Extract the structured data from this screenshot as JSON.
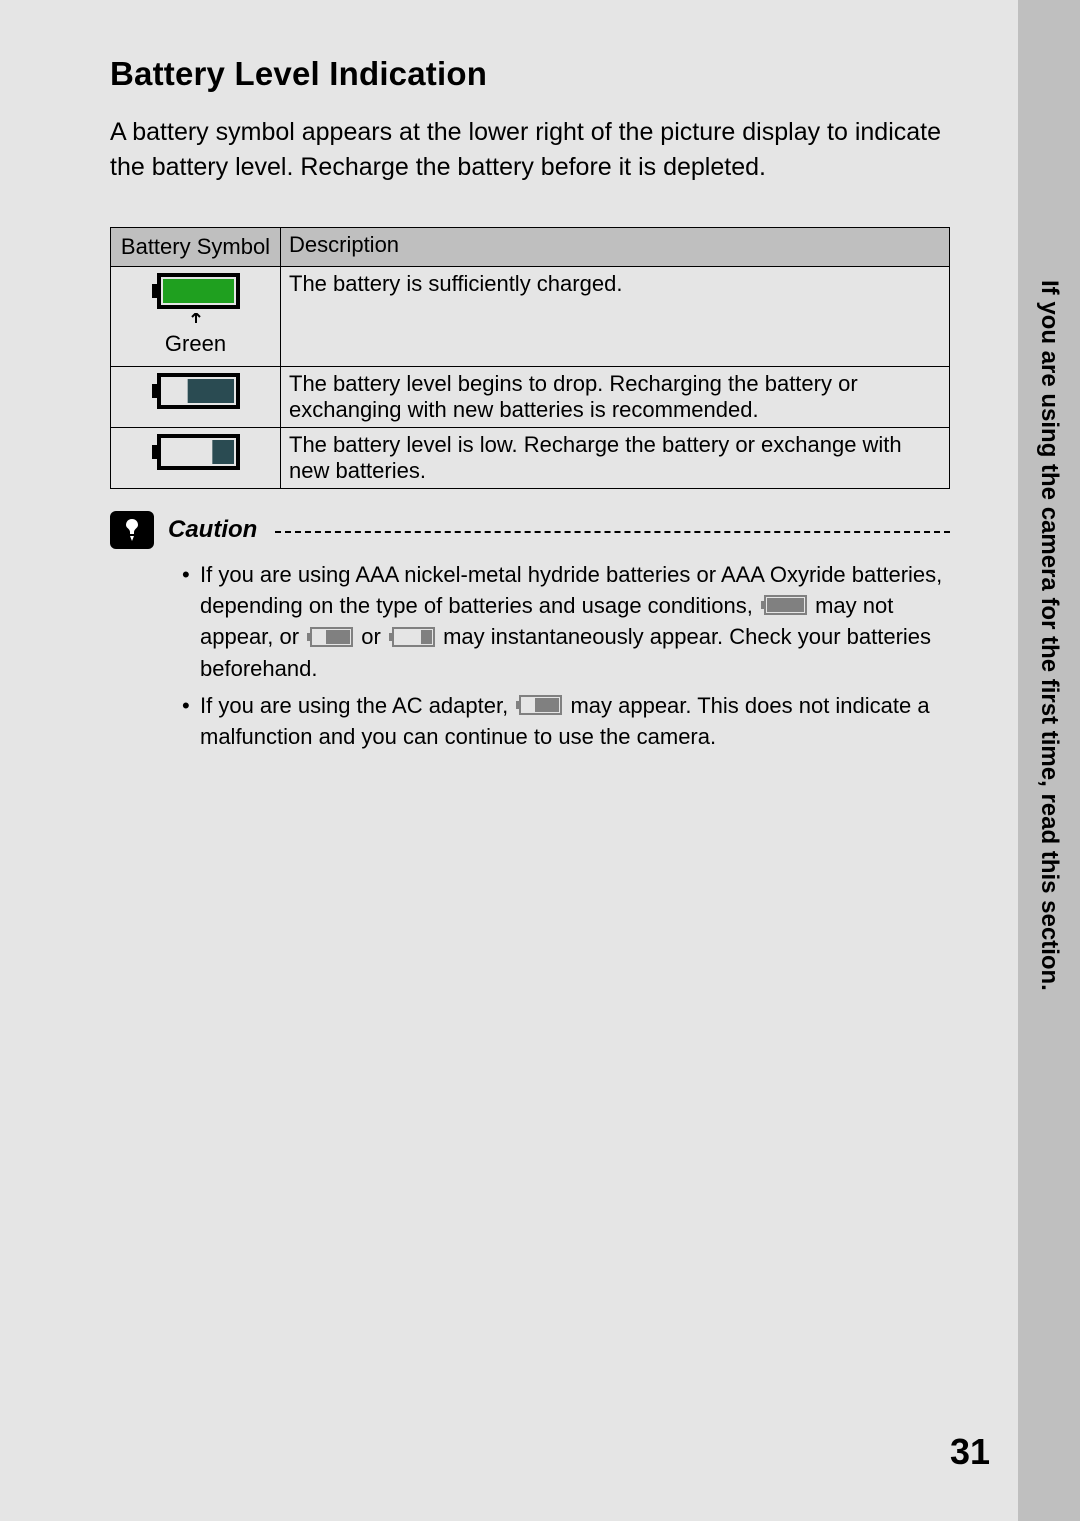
{
  "sideTab": "If you are using the camera for the first time, read this section.",
  "pageNumber": "31",
  "heading": "Battery Level Indication",
  "intro": "A battery symbol appears at the lower right of the picture display to indicate the battery level. Recharge the battery before it is depleted.",
  "table": {
    "headers": [
      "Battery Symbol",
      "Description"
    ],
    "rows": [
      {
        "symbolLabel": "Green",
        "fill": "full-green",
        "desc": "The battery is sufficiently charged."
      },
      {
        "symbolLabel": "",
        "fill": "two-thirds",
        "desc": "The battery level begins to drop. Recharging the battery or exchanging with new batteries is recommended."
      },
      {
        "symbolLabel": "",
        "fill": "one-third",
        "desc": "The battery level is low. Recharge the battery or exchange with new batteries."
      }
    ]
  },
  "caution": {
    "label": "Caution",
    "items": [
      {
        "preA": "If you are using AAA nickel-metal hydride batteries or AAA Oxyride batteries, depending on the type of batteries and usage conditions, ",
        "iconA": "full",
        "midA": " may not appear, or ",
        "iconB": "two-thirds",
        "midB": " or ",
        "iconC": "one-third",
        "postC": " may instantaneously appear. Check your batteries beforehand."
      },
      {
        "preA": "If you are using the AC adapter, ",
        "iconA": "two-thirds",
        "postA": " may appear. This does not indicate a malfunction and you can continue to use the camera."
      }
    ]
  },
  "colors": {
    "pageBg": "#e5e5e5",
    "tabBg": "#bfbfbf",
    "tableHeaderBg": "#bfbfbf",
    "green": "#1fa01f",
    "darkFill": "#2a4b52",
    "outlineGray": "#808080"
  }
}
